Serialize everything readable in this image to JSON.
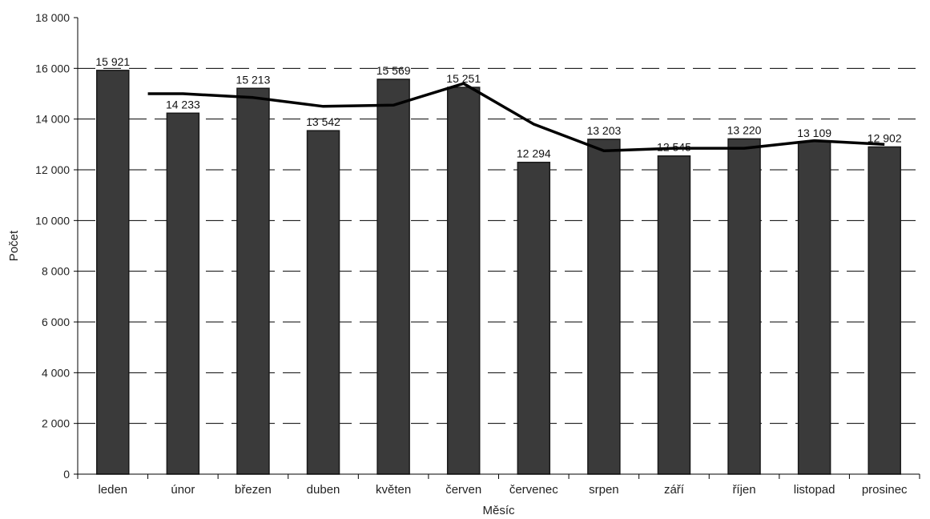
{
  "chart_data": {
    "type": "bar",
    "title": "",
    "xlabel": "Měsíc",
    "ylabel": "Počet",
    "ylim": [
      0,
      18000
    ],
    "y_ticks": [
      0,
      2000,
      4000,
      6000,
      8000,
      10000,
      12000,
      14000,
      16000,
      18000
    ],
    "y_tick_labels": [
      "0",
      "2 000",
      "4 000",
      "6 000",
      "8 000",
      "10 000",
      "12 000",
      "14 000",
      "16 000",
      "18 000"
    ],
    "grid": "dashed horizontal",
    "categories": [
      "leden",
      "únor",
      "březen",
      "duben",
      "květen",
      "červen",
      "červenec",
      "srpen",
      "září",
      "říjen",
      "listopad",
      "prosinec"
    ],
    "series": [
      {
        "type": "bar",
        "values": [
          15921,
          14233,
          15213,
          13542,
          15569,
          15251,
          12294,
          13203,
          12545,
          13220,
          13109,
          12902
        ],
        "data_labels": [
          "15 921",
          "14 233",
          "15 213",
          "13 542",
          "15 569",
          "15 251",
          "12 294",
          "13 203",
          "12 545",
          "13 220",
          "13 109",
          "12 902"
        ],
        "color": "#3a3a3a"
      },
      {
        "type": "line",
        "values": [
          null,
          15000,
          14850,
          14500,
          14550,
          15400,
          13800,
          12750,
          12850,
          12850,
          13150,
          13000
        ],
        "color": "#000000"
      }
    ]
  }
}
